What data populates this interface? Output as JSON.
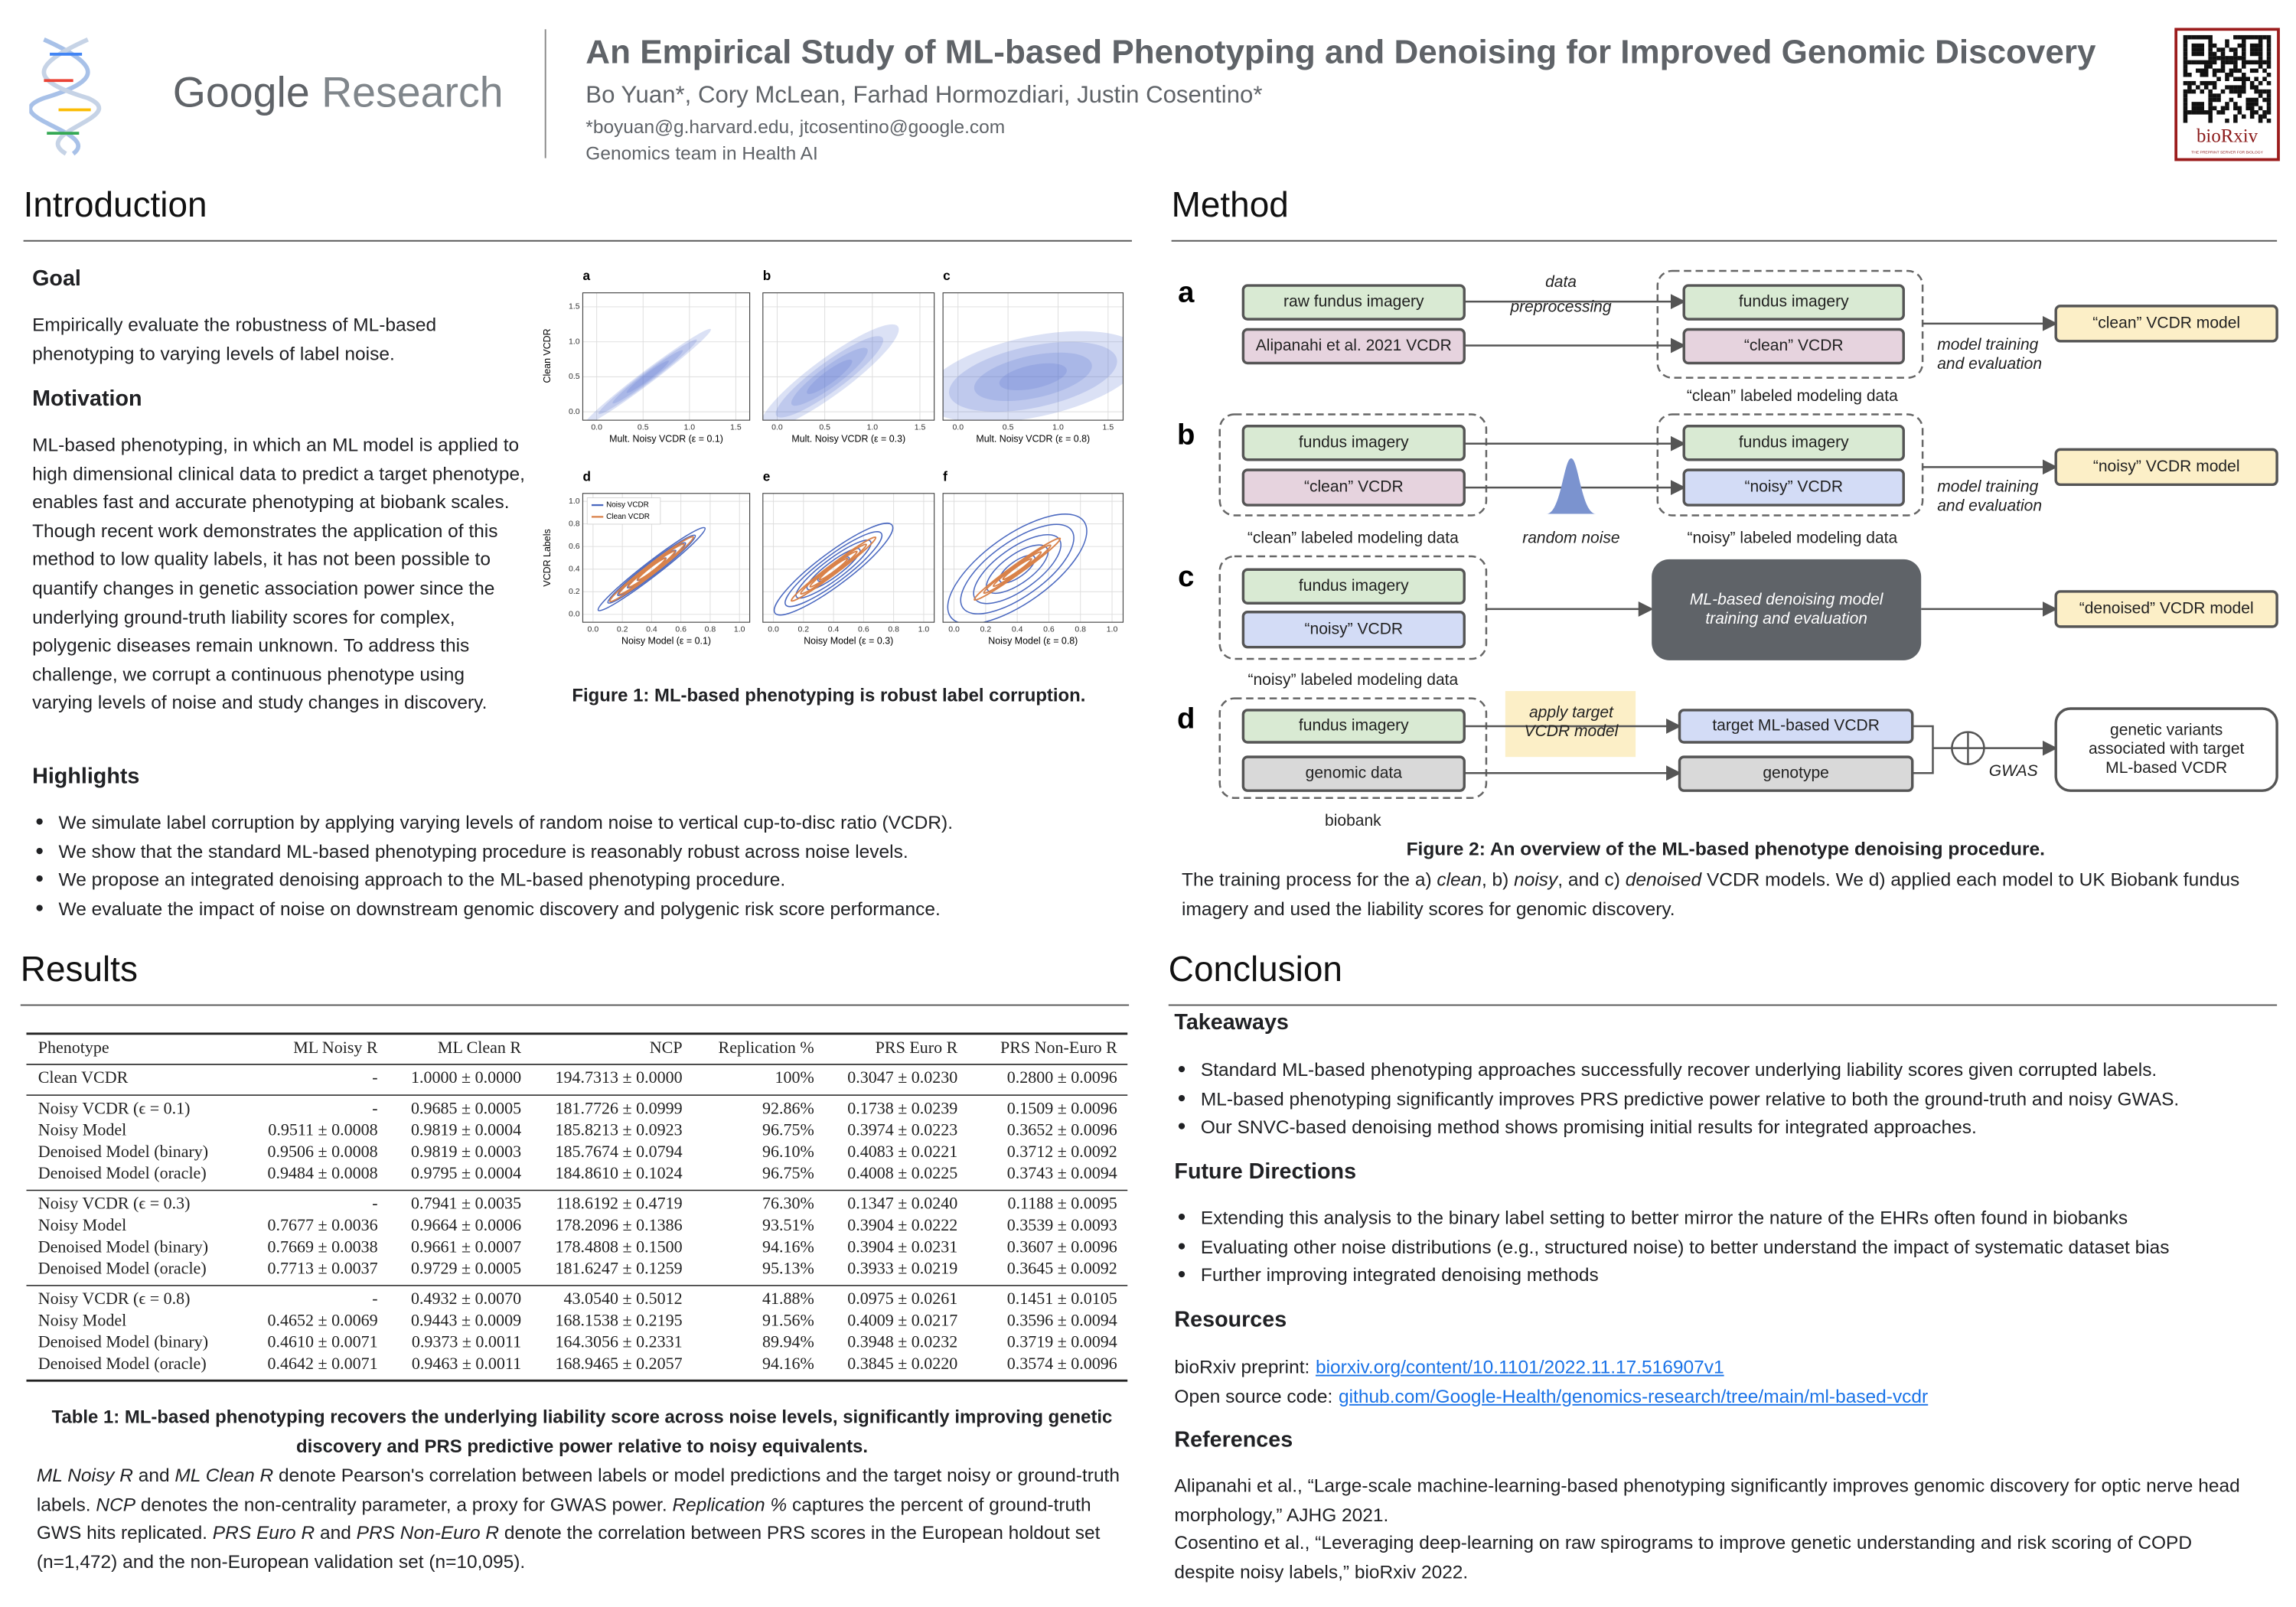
{
  "header": {
    "logo_word1": "Google",
    "logo_word2": "Research",
    "title": "An Empirical Study of ML-based Phenotyping and Denoising for Improved Genomic Discovery",
    "authors": "Bo Yuan*, Cory McLean, Farhad Hormozdiari, Justin Cosentino*",
    "emails": "*boyuan@g.harvard.edu, jtcosentino@google.com",
    "team": "Genomics team in Health AI",
    "qr_label": "bioRxiv",
    "qr_tagline": "THE PREPRINT SERVER FOR BIOLOGY"
  },
  "introduction": {
    "heading": "Introduction",
    "goal_heading": "Goal",
    "goal": "Empirically evaluate the robustness of ML-based phenotyping to varying levels of label noise.",
    "motivation_heading": "Motivation",
    "motivation": "ML-based phenotyping, in which an ML model is applied to high dimensional clinical data to predict a target phenotype, enables fast and accurate phenotyping at biobank scales. Though recent work demonstrates the application of this method to low quality labels, it has not been possible to quantify changes in genetic association power since the underlying ground-truth liability scores for complex, polygenic diseases remain unknown. To address this challenge, we corrupt a continuous phenotype using varying levels of noise and study changes in discovery.",
    "highlights_heading": "Highlights",
    "highlights": [
      "We simulate label corruption by applying varying levels of random noise to vertical cup-to-disc ratio (VCDR).",
      "We show that the standard ML-based phenotyping procedure is reasonably robust across noise levels.",
      "We propose an integrated denoising approach to the ML-based phenotyping procedure.",
      "We evaluate the impact of noise on downstream genomic discovery and polygenic risk score performance."
    ]
  },
  "figure1": {
    "panels": [
      {
        "letter": "a",
        "xlabel": "Mult. Noisy VCDR (ε = 0.1)"
      },
      {
        "letter": "b",
        "xlabel": "Mult. Noisy VCDR (ε = 0.3)"
      },
      {
        "letter": "c",
        "xlabel": "Mult. Noisy VCDR (ε = 0.8)"
      },
      {
        "letter": "d",
        "xlabel": "Noisy Model (ε = 0.1)"
      },
      {
        "letter": "e",
        "xlabel": "Noisy Model (ε = 0.3)"
      },
      {
        "letter": "f",
        "xlabel": "Noisy Model (ε = 0.8)"
      }
    ],
    "top": {
      "ylabel": "Clean VCDR",
      "xlim": [
        -0.15,
        1.65
      ],
      "ylim": [
        -0.12,
        1.7
      ],
      "xticks": [
        {
          "value": 0,
          "label": "0.0"
        },
        0.5,
        {
          "value": 1,
          "label": "1.0"
        },
        1.5
      ],
      "yticks": [
        {
          "value": 0,
          "label": "0.0"
        },
        0.5,
        {
          "value": 1,
          "label": "1.0"
        },
        1.5
      ]
    },
    "bottom": {
      "ylabel": "VCDR Labels",
      "xlim": [
        -0.07,
        1.07
      ],
      "ylim": [
        -0.07,
        1.07
      ],
      "xticks": [
        {
          "value": 0,
          "label": "0.0"
        },
        0.2,
        0.4,
        0.6,
        0.8,
        {
          "value": 1,
          "label": "1.0"
        }
      ],
      "yticks": [
        {
          "value": 0,
          "label": "0.0"
        },
        0.2,
        0.4,
        0.6,
        0.8,
        {
          "value": 1,
          "label": "1.0"
        }
      ],
      "legend": [
        {
          "name": "Noisy VCDR",
          "color": "#4a68c0"
        },
        {
          "name": "Clean VCDR",
          "color": "#d9824a"
        }
      ]
    },
    "caption": "Figure 1: ML-based phenotyping is robust label corruption."
  },
  "method": {
    "heading": "Method",
    "letters": [
      "a",
      "b",
      "c",
      "d"
    ],
    "boxes": [
      [
        "raw fundus imagery"
      ],
      [
        "Alipanahi et al. 2021 VCDR"
      ],
      [
        "fundus imagery"
      ],
      [
        "“clean” VCDR"
      ],
      [
        "“clean” VCDR model"
      ],
      [
        "fundus imagery"
      ],
      [
        "“clean” VCDR"
      ],
      [
        "fundus imagery"
      ],
      [
        "“noisy” VCDR"
      ],
      [
        "“noisy” VCDR model"
      ],
      [
        "fundus imagery"
      ],
      [
        "“noisy” VCDR"
      ],
      [
        "ML-based denoising model",
        "training and evaluation"
      ],
      [
        "“denoised” VCDR model"
      ],
      [
        "fundus imagery"
      ],
      [
        "genomic data"
      ],
      [
        "target ML-based VCDR"
      ],
      [
        "genotype"
      ],
      [
        "genetic variants",
        "associated with target",
        "ML-based VCDR"
      ]
    ],
    "annotations": [
      [
        "data",
        "preprocessing"
      ],
      [
        "“clean” labeled modeling data"
      ],
      [
        "model training",
        "and evaluation"
      ],
      [
        "“clean” labeled modeling data"
      ],
      [
        "random noise"
      ],
      [
        "“noisy” labeled modeling data"
      ],
      [
        "model training",
        "and evaluation"
      ],
      [
        "“noisy” labeled modeling data"
      ],
      [
        "apply target",
        "VCDR model"
      ],
      [
        "biobank"
      ],
      [
        "GWAS"
      ]
    ],
    "caption": "Figure 2: An overview of the ML-based phenotype denoising procedure.",
    "description": [
      "The training process for the a) ",
      "clean",
      ", b) ",
      "noisy",
      ", and c) ",
      "denoised",
      " VCDR models. We d) applied each model to UK Biobank fundus imagery and used the liability scores for genomic discovery."
    ]
  },
  "results": {
    "heading": "Results",
    "table": {
      "header": [
        "Phenotype",
        "ML Noisy R",
        "ML Clean R",
        "NCP",
        "Replication %",
        "PRS Euro R",
        "PRS Non-Euro R"
      ],
      "groups": [
        [
          [
            "Clean VCDR",
            "-",
            "1.0000 ± 0.0000",
            "194.7313 ± 0.0000",
            "100%",
            "0.3047 ± 0.0230",
            "0.2800 ± 0.0096"
          ]
        ],
        [
          [
            "Noisy VCDR (ϵ = 0.1)",
            "-",
            "0.9685 ± 0.0005",
            "181.7726 ± 0.0999",
            "92.86%",
            "0.1738 ± 0.0239",
            "0.1509 ± 0.0096"
          ],
          [
            "Noisy Model",
            "0.9511 ± 0.0008",
            "0.9819 ± 0.0004",
            "185.8213 ± 0.0923",
            "96.75%",
            "0.3974 ± 0.0223",
            "0.3652 ± 0.0096"
          ],
          [
            "Denoised Model (binary)",
            "0.9506 ± 0.0008",
            "0.9819 ± 0.0003",
            "185.7674 ± 0.0794",
            "96.10%",
            "0.4083 ± 0.0221",
            "0.3712 ± 0.0092"
          ],
          [
            "Denoised Model (oracle)",
            "0.9484 ± 0.0008",
            "0.9795 ± 0.0004",
            "184.8610 ± 0.1024",
            "96.75%",
            "0.4008 ± 0.0225",
            "0.3743 ± 0.0094"
          ]
        ],
        [
          [
            "Noisy VCDR (ϵ = 0.3)",
            "-",
            "0.7941 ± 0.0035",
            "118.6192 ± 0.4719",
            "76.30%",
            "0.1347 ± 0.0240",
            "0.1188 ± 0.0095"
          ],
          [
            "Noisy Model",
            "0.7677 ± 0.0036",
            "0.9664 ± 0.0006",
            "178.2096 ± 0.1386",
            "93.51%",
            "0.3904 ± 0.0222",
            "0.3539 ± 0.0093"
          ],
          [
            "Denoised Model (binary)",
            "0.7669 ± 0.0038",
            "0.9661 ± 0.0007",
            "178.4808 ± 0.1500",
            "94.16%",
            "0.3904 ± 0.0231",
            "0.3607 ± 0.0096"
          ],
          [
            "Denoised Model (oracle)",
            "0.7713 ± 0.0037",
            "0.9729 ± 0.0005",
            "181.6247 ± 0.1259",
            "95.13%",
            "0.3933 ± 0.0219",
            "0.3645 ± 0.0092"
          ]
        ],
        [
          [
            "Noisy VCDR (ϵ = 0.8)",
            "-",
            "0.4932 ± 0.0070",
            "43.0540 ± 0.5012",
            "41.88%",
            "0.0975 ± 0.0261",
            "0.1451 ± 0.0105"
          ],
          [
            "Noisy Model",
            "0.4652 ± 0.0069",
            "0.9443 ± 0.0009",
            "168.1538 ± 0.2195",
            "91.56%",
            "0.4009 ± 0.0217",
            "0.3596 ± 0.0094"
          ],
          [
            "Denoised Model (binary)",
            "0.4610 ± 0.0071",
            "0.9373 ± 0.0011",
            "164.3056 ± 0.2331",
            "89.94%",
            "0.3948 ± 0.0232",
            "0.3719 ± 0.0094"
          ],
          [
            "Denoised Model (oracle)",
            "0.4642 ± 0.0071",
            "0.9463 ± 0.0011",
            "168.9465 ± 0.2057",
            "94.16%",
            "0.3845 ± 0.0220",
            "0.3574 ± 0.0096"
          ]
        ]
      ]
    },
    "caption": "Table 1: ML-based phenotyping recovers the underlying liability score across noise levels, significantly improving genetic discovery and PRS predictive power relative to noisy equivalents.",
    "description": [
      "ML Noisy R",
      " and ",
      "ML Clean R",
      " denote Pearson's correlation between labels or model predictions and the target noisy or ground-truth labels. ",
      "NCP",
      " denotes the non-centrality parameter, a proxy for GWAS power. ",
      "Replication %",
      " captures the percent of ground-truth GWS hits replicated. ",
      "PRS Euro R",
      " and ",
      "PRS Non-Euro R",
      " denote the correlation between PRS scores in the European holdout set (n=1,472) and the non-European validation set (n=10,095)."
    ]
  },
  "conclusion": {
    "heading": "Conclusion",
    "takeaways_heading": "Takeaways",
    "takeaways": [
      "Standard ML-based phenotyping approaches successfully recover underlying liability scores given corrupted labels.",
      "ML-based phenotyping significantly improves PRS predictive power relative to both the ground-truth and noisy GWAS.",
      "Our SNVC-based denoising method shows promising initial results for integrated approaches."
    ],
    "future_heading": "Future Directions",
    "future": [
      "Extending this analysis to the binary label setting to better mirror the nature of the EHRs often found in biobanks",
      "Evaluating other noise distributions (e.g., structured noise) to better understand the impact of systematic dataset bias",
      "Further improving integrated denoising methods"
    ],
    "resources_heading": "Resources",
    "resources": [
      {
        "label": "bioRxiv preprint:",
        "link": "biorxiv.org/content/10.1101/2022.11.17.516907v1"
      },
      {
        "label": "Open source code:",
        "link": "github.com/Google-Health/genomics-research/tree/main/ml-based-vcdr"
      }
    ],
    "references_heading": "References",
    "references": [
      "Alipanahi et al., “Large-scale machine-learning-based phenotyping significantly improves genomic discovery for optic nerve head morphology,” AJHG  2021.",
      "Cosentino et al., “Leveraging deep-learning on raw spirograms to improve genetic understanding and risk scoring of COPD despite noisy labels,” bioRxiv  2022."
    ]
  }
}
